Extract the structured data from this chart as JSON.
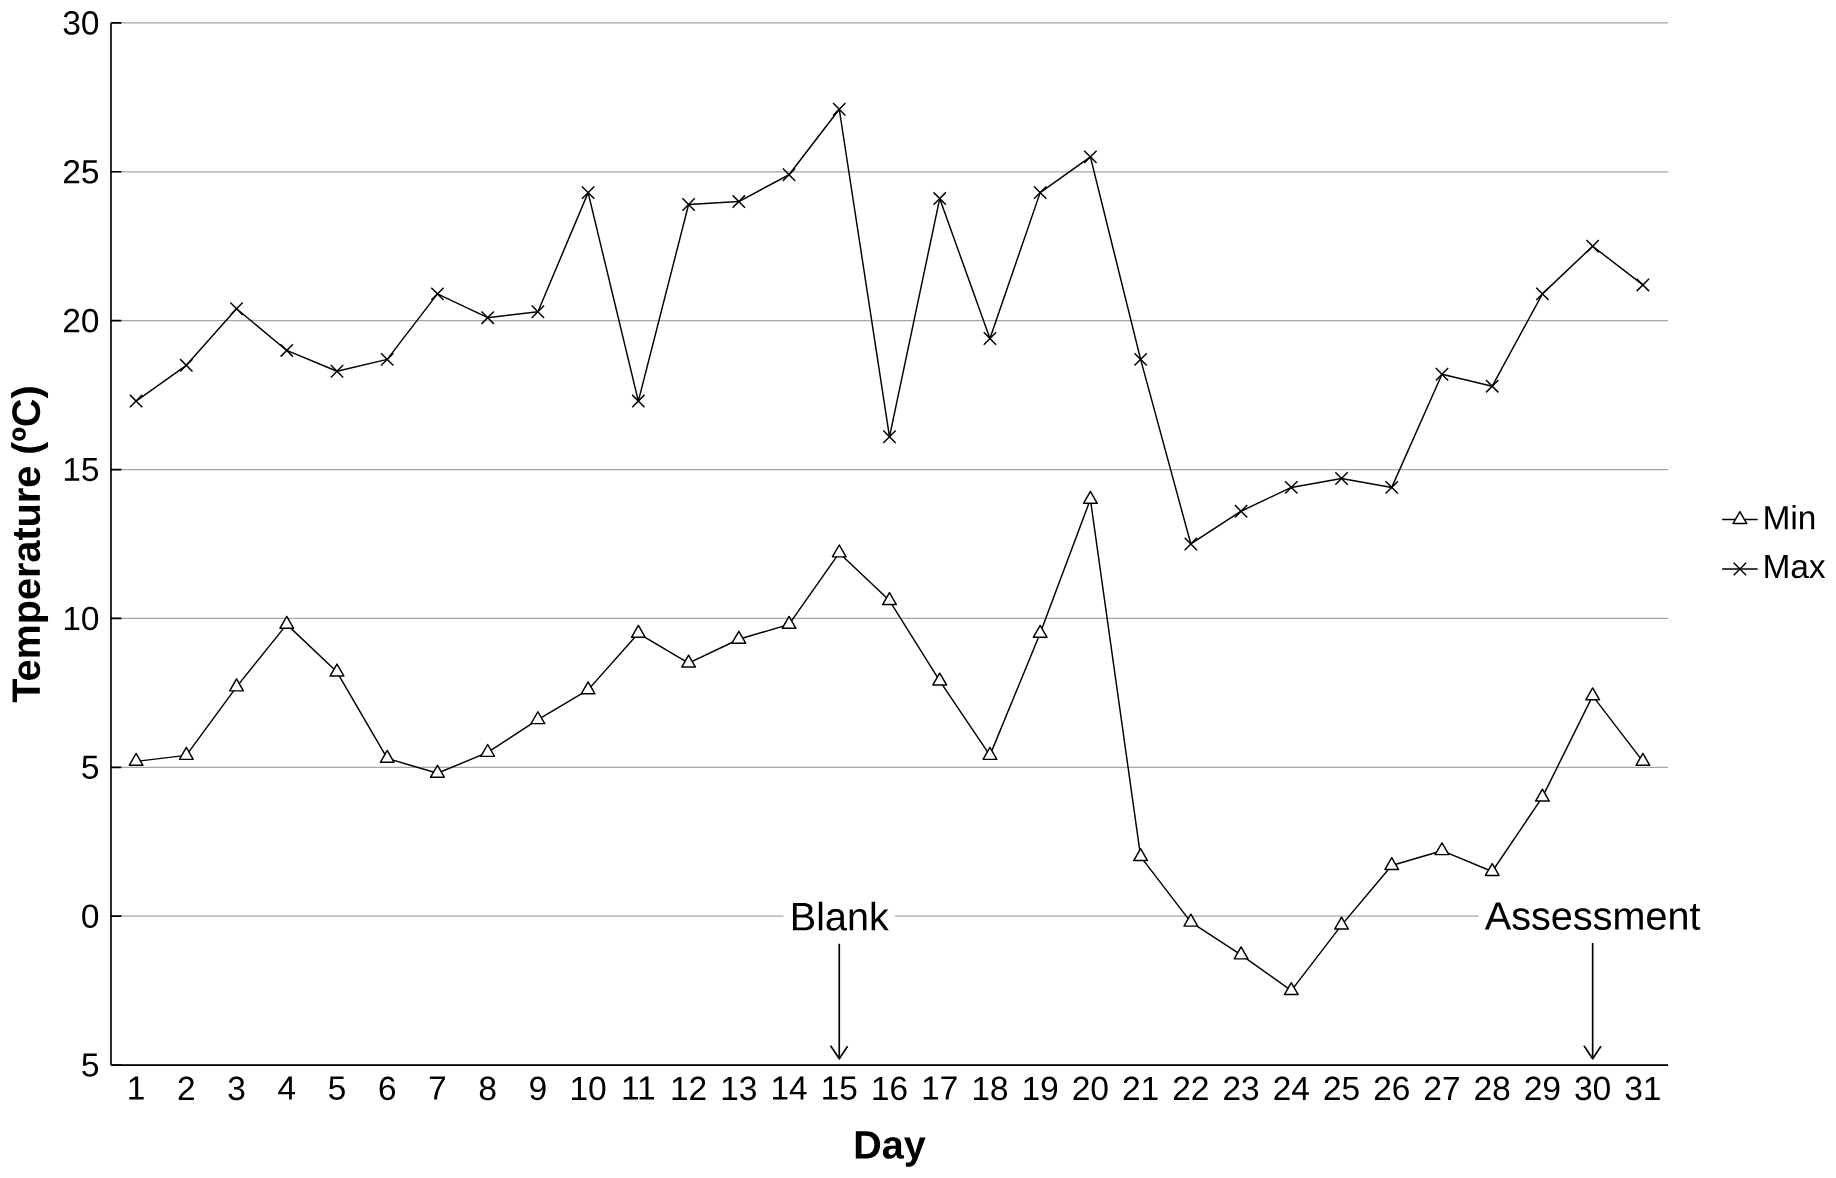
{
  "chart_data": {
    "type": "line",
    "xlabel": "Day",
    "ylabel": "Temperature (ºC)",
    "x": [
      1,
      2,
      3,
      4,
      5,
      6,
      7,
      8,
      9,
      10,
      11,
      12,
      13,
      14,
      15,
      16,
      17,
      18,
      19,
      20,
      21,
      22,
      23,
      24,
      25,
      26,
      27,
      28,
      29,
      30,
      31
    ],
    "series": [
      {
        "name": "Min",
        "color": "#000000",
        "marker": "triangle",
        "values": [
          5.2,
          5.4,
          7.7,
          9.8,
          8.2,
          5.3,
          4.8,
          5.5,
          6.6,
          7.6,
          9.5,
          8.5,
          9.3,
          9.8,
          12.2,
          10.6,
          7.9,
          5.4,
          9.5,
          14.0,
          2.0,
          -0.2,
          -1.3,
          -2.5,
          -0.3,
          1.7,
          2.2,
          1.5,
          4.0,
          7.4,
          5.2
        ]
      },
      {
        "name": "Max",
        "color": "#000000",
        "marker": "cross",
        "values": [
          17.3,
          18.5,
          20.4,
          19.0,
          18.3,
          18.7,
          20.9,
          20.1,
          20.3,
          24.3,
          17.3,
          23.9,
          24.0,
          24.9,
          27.1,
          16.1,
          24.1,
          19.4,
          24.3,
          25.5,
          18.7,
          12.5,
          13.6,
          14.4,
          14.7,
          14.4,
          18.2,
          17.8,
          20.9,
          22.5,
          21.2
        ]
      }
    ],
    "xlim": [
      0.5,
      31.5
    ],
    "xticks": [
      1,
      2,
      3,
      4,
      5,
      6,
      7,
      8,
      9,
      10,
      11,
      12,
      13,
      14,
      15,
      16,
      17,
      18,
      19,
      20,
      21,
      22,
      23,
      24,
      25,
      26,
      27,
      28,
      29,
      30,
      31
    ],
    "ylim": [
      -5,
      30
    ],
    "yticks": [
      {
        "value": -5,
        "label": "5"
      },
      0,
      5,
      10,
      15,
      20,
      25,
      30
    ],
    "grid": "y",
    "legend": "right",
    "line_style": "solid",
    "ref_lines": [
      {
        "axis": "x",
        "value": 15,
        "label": "Blank"
      },
      {
        "axis": "x",
        "value": 30,
        "label": "Assessment"
      }
    ]
  }
}
